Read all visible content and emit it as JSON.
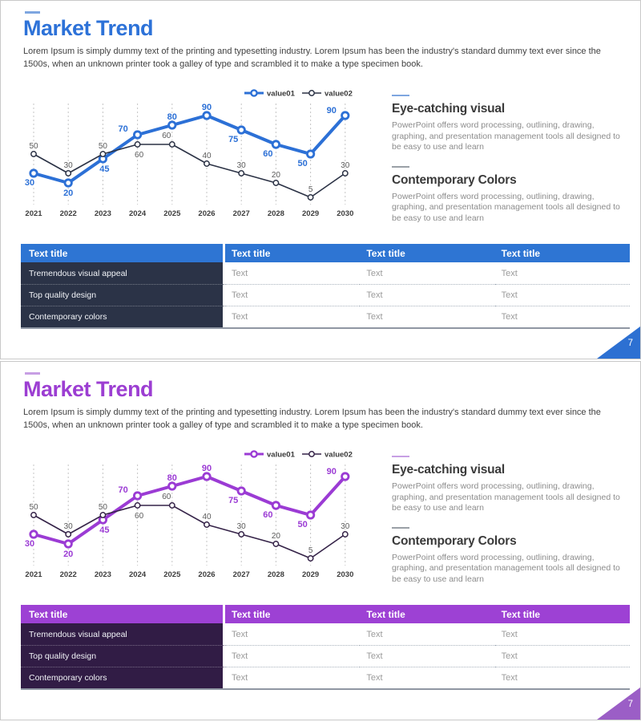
{
  "slides": [
    {
      "theme": "blue",
      "colors": {
        "accent": "#2d72d8",
        "accent_light": "#7ea6e0",
        "table_header_bg": "#2e75d3",
        "table_label_col_bg": "#2b3347",
        "triangle": "#2d70d2",
        "series1": "#2c70d6",
        "series2": "#2b3245"
      },
      "title": "Market Trend",
      "intro": "Lorem Ipsum is simply dummy text of the printing and typesetting industry. Lorem Ipsum has been the industry's standard dummy text ever since the 1500s, when an unknown printer took a galley of type and scrambled it to make a type specimen book.",
      "sections": [
        {
          "title": "Eye-catching visual",
          "body": "PowerPoint offers word processing, outlining, drawing, graphing, and presentation management tools all designed to be easy to use and learn"
        },
        {
          "title": "Contemporary Colors",
          "body": "PowerPoint offers word processing, outlining, drawing, graphing, and presentation management tools all designed to be easy to use and learn"
        }
      ],
      "chart_data": {
        "type": "line",
        "x": [
          "2021",
          "2022",
          "2023",
          "2024",
          "2025",
          "2026",
          "2027",
          "2028",
          "2029",
          "2030"
        ],
        "series": [
          {
            "name": "value01",
            "color": "#2c70d6",
            "values": [
              30,
              20,
              45,
              70,
              80,
              90,
              75,
              60,
              50,
              90
            ],
            "label_offsets": [
              [
                -5,
                15
              ],
              [
                0,
                16
              ],
              [
                2,
                16
              ],
              [
                -18,
                -4
              ],
              [
                0,
                -7
              ],
              [
                0,
                -7
              ],
              [
                -10,
                15
              ],
              [
                -10,
                15
              ],
              [
                -10,
                15
              ],
              [
                -17,
                -3
              ]
            ]
          },
          {
            "name": "value02",
            "color": "#2b3245",
            "values": [
              50,
              30,
              50,
              60,
              60,
              40,
              30,
              20,
              5,
              30
            ],
            "label_offsets": [
              [
                0,
                -7
              ],
              [
                0,
                -7
              ],
              [
                0,
                -7
              ],
              [
                2,
                16
              ],
              [
                -7,
                -8
              ],
              [
                0,
                -7
              ],
              [
                0,
                -7
              ],
              [
                0,
                -7
              ],
              [
                0,
                -7
              ],
              [
                0,
                -7
              ]
            ]
          }
        ],
        "ylim": [
          0,
          100
        ],
        "grid": "vertical-dotted",
        "legend_position": "top-right"
      },
      "table": {
        "header": [
          "Text title",
          "Text title",
          "Text title",
          "Text title"
        ],
        "rows": [
          {
            "label": "Tremendous visual appeal",
            "cells": [
              "Text",
              "Text",
              "Text"
            ]
          },
          {
            "label": "Top quality design",
            "cells": [
              "Text",
              "Text",
              "Text"
            ]
          },
          {
            "label": "Contemporary colors",
            "cells": [
              "Text",
              "Text",
              "Text"
            ]
          }
        ]
      },
      "page_number": "7"
    },
    {
      "theme": "purple",
      "colors": {
        "accent": "#9c3ed2",
        "accent_light": "#c79fe4",
        "table_header_bg": "#9d41d4",
        "table_label_col_bg": "#311c45",
        "triangle": "#9b5ec6",
        "series1": "#9b3bd4",
        "series2": "#352348"
      },
      "title": "Market Trend",
      "intro": "Lorem Ipsum is simply dummy text of the printing and typesetting industry. Lorem Ipsum has been the industry's standard dummy text ever since the 1500s, when an unknown printer took a galley of type and scrambled it to make a type specimen book.",
      "sections": [
        {
          "title": "Eye-catching visual",
          "body": "PowerPoint offers word processing, outlining, drawing, graphing, and presentation management tools all designed to be easy to use and learn"
        },
        {
          "title": "Contemporary Colors",
          "body": "PowerPoint offers word processing, outlining, drawing, graphing, and presentation management tools all designed to be easy to use and learn"
        }
      ],
      "chart_data": {
        "type": "line",
        "x": [
          "2021",
          "2022",
          "2023",
          "2024",
          "2025",
          "2026",
          "2027",
          "2028",
          "2029",
          "2030"
        ],
        "series": [
          {
            "name": "value01",
            "color": "#9b3bd4",
            "values": [
              30,
              20,
              45,
              70,
              80,
              90,
              75,
              60,
              50,
              90
            ],
            "label_offsets": [
              [
                -5,
                15
              ],
              [
                0,
                16
              ],
              [
                2,
                16
              ],
              [
                -18,
                -4
              ],
              [
                0,
                -7
              ],
              [
                0,
                -7
              ],
              [
                -10,
                15
              ],
              [
                -10,
                15
              ],
              [
                -10,
                15
              ],
              [
                -17,
                -3
              ]
            ]
          },
          {
            "name": "value02",
            "color": "#352348",
            "values": [
              50,
              30,
              50,
              60,
              60,
              40,
              30,
              20,
              5,
              30
            ],
            "label_offsets": [
              [
                0,
                -7
              ],
              [
                0,
                -7
              ],
              [
                0,
                -7
              ],
              [
                2,
                16
              ],
              [
                -7,
                -8
              ],
              [
                0,
                -7
              ],
              [
                0,
                -7
              ],
              [
                0,
                -7
              ],
              [
                0,
                -7
              ],
              [
                0,
                -7
              ]
            ]
          }
        ],
        "ylim": [
          0,
          100
        ],
        "grid": "vertical-dotted",
        "legend_position": "top-right"
      },
      "table": {
        "header": [
          "Text title",
          "Text title",
          "Text title",
          "Text title"
        ],
        "rows": [
          {
            "label": "Tremendous visual appeal",
            "cells": [
              "Text",
              "Text",
              "Text"
            ]
          },
          {
            "label": "Top quality design",
            "cells": [
              "Text",
              "Text",
              "Text"
            ]
          },
          {
            "label": "Contemporary colors",
            "cells": [
              "Text",
              "Text",
              "Text"
            ]
          }
        ]
      },
      "page_number": "7"
    }
  ]
}
